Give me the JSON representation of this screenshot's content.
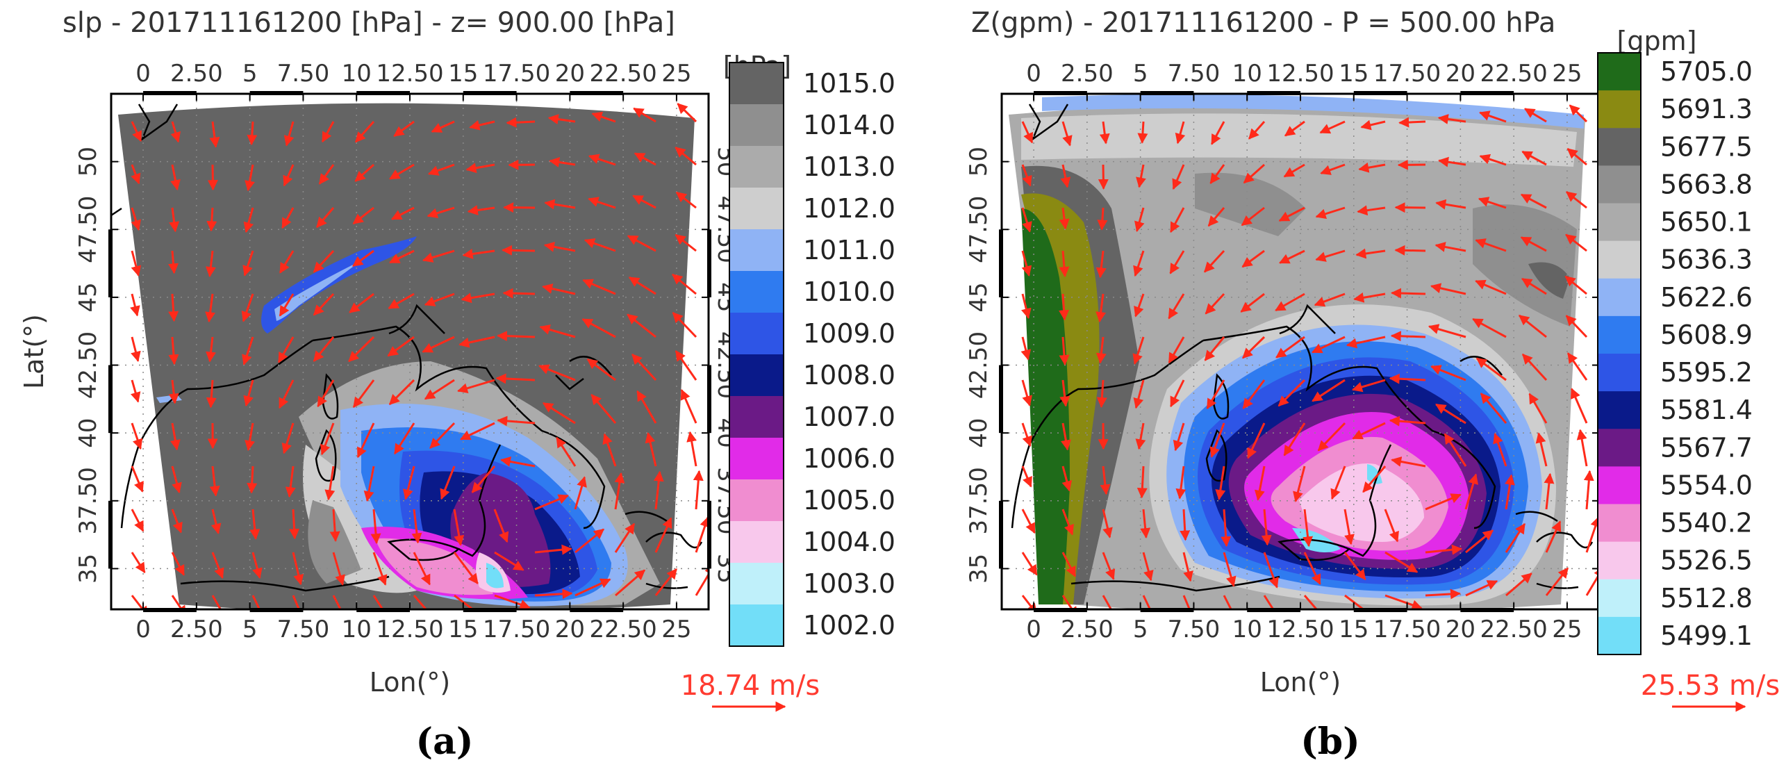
{
  "figure": {
    "panel_labels": [
      "(a)",
      "(b)"
    ]
  },
  "chart_data": [
    {
      "type": "heatmap",
      "panel": "(a)",
      "title": "slp - 201711161200 [hPa] - z=   900.00 [hPa]",
      "xlabel": "Lon(°)",
      "ylabel": "Lat(°)",
      "x_ticks": [
        0,
        2.5,
        5,
        7.5,
        10,
        12.5,
        15,
        17.5,
        20,
        22.5,
        25
      ],
      "x_tick_labels": [
        "0",
        "2.50",
        "5",
        "7.50",
        "10",
        "12.50",
        "15",
        "17.50",
        "20",
        "22.50",
        "25"
      ],
      "y_ticks": [
        35,
        37.5,
        40,
        42.5,
        45,
        47.5,
        50
      ],
      "y_tick_labels": [
        "35",
        "37.50",
        "40",
        "42.50",
        "45",
        "47.50",
        "50"
      ],
      "xlim": [
        -1.5,
        26.5
      ],
      "ylim": [
        33.5,
        52.5
      ],
      "grid": true,
      "colorbar": {
        "unit": "[hPa]",
        "levels": [
          "1015.0",
          "1014.0",
          "1013.0",
          "1012.0",
          "1011.0",
          "1010.0",
          "1009.0",
          "1008.0",
          "1007.0",
          "1006.0",
          "1005.0",
          "1004.0",
          "1003.0",
          "1002.0"
        ],
        "colors": [
          "#646464",
          "#8f8f8f",
          "#ababab",
          "#cecece",
          "#8fb3f5",
          "#2f7bf0",
          "#2e55e6",
          "#0a1a8a",
          "#6b1a86",
          "#e12be8",
          "#f08dd0",
          "#f8c8ec",
          "#bff0fa",
          "#72def8"
        ]
      },
      "vectors": {
        "color": "#ff2a1a",
        "reference_label": "18.74 m/s"
      }
    },
    {
      "type": "heatmap",
      "panel": "(b)",
      "title": "Z(gpm) - 201711161200 - P =   500.00 hPa",
      "xlabel": "Lon(°)",
      "ylabel": "",
      "x_ticks": [
        0,
        2.5,
        5,
        7.5,
        10,
        12.5,
        15,
        17.5,
        20,
        22.5,
        25
      ],
      "x_tick_labels": [
        "0",
        "2.50",
        "5",
        "7.50",
        "10",
        "12.50",
        "15",
        "17.50",
        "20",
        "22.50",
        "25"
      ],
      "y_ticks": [
        35,
        37.5,
        40,
        42.5,
        45,
        47.5,
        50
      ],
      "y_tick_labels": [
        "35",
        "37.50",
        "40",
        "42.50",
        "45",
        "47.50",
        "50"
      ],
      "xlim": [
        -1.5,
        26.5
      ],
      "ylim": [
        33.5,
        52.5
      ],
      "grid": true,
      "colorbar": {
        "unit": "[gpm]",
        "levels": [
          "5705.0",
          "5691.3",
          "5677.5",
          "5663.8",
          "5650.1",
          "5636.3",
          "5622.6",
          "5608.9",
          "5595.2",
          "5581.4",
          "5567.7",
          "5554.0",
          "5540.2",
          "5526.5",
          "5512.8",
          "5499.1"
        ],
        "colors": [
          "#1f6b1a",
          "#8a8a12",
          "#646464",
          "#8f8f8f",
          "#ababab",
          "#cecece",
          "#8fb3f5",
          "#2f7bf0",
          "#2e55e6",
          "#0a1a8a",
          "#6b1a86",
          "#e12be8",
          "#f08dd0",
          "#f8c8ec",
          "#bff0fa",
          "#72def8"
        ]
      },
      "vectors": {
        "color": "#ff2a1a",
        "reference_label": "25.53 m/s"
      }
    }
  ]
}
